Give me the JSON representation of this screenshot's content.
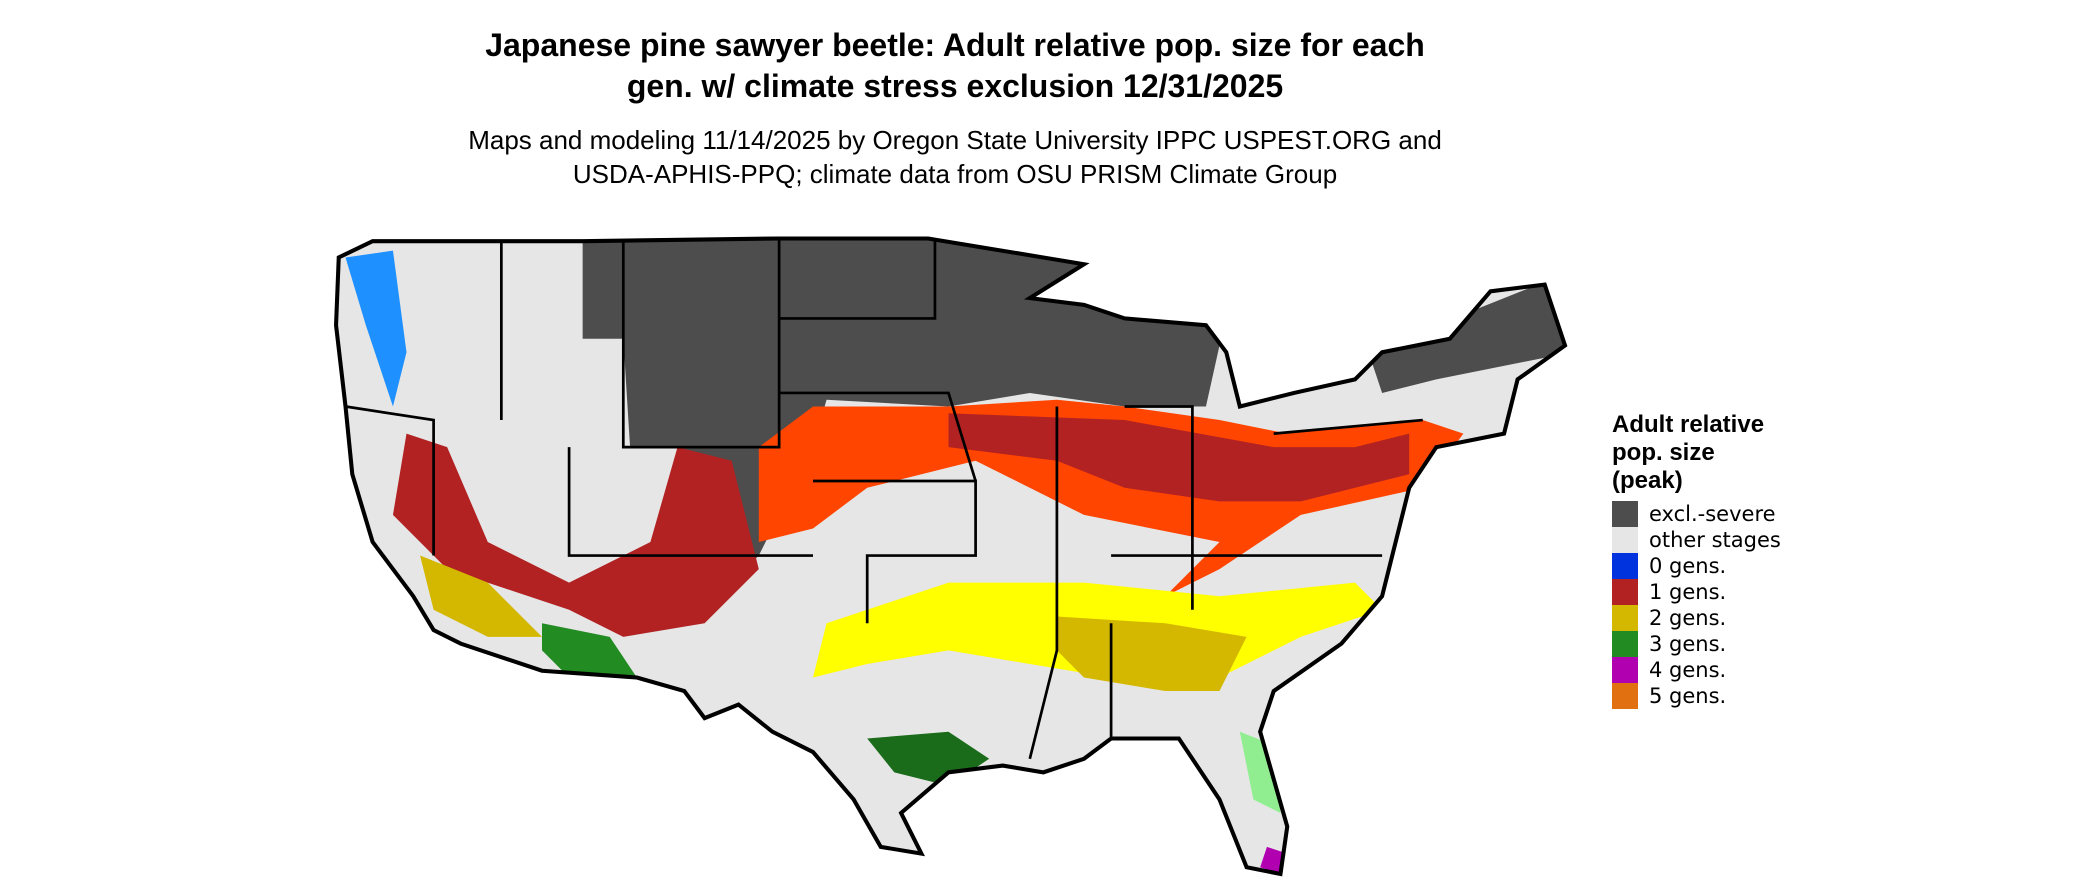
{
  "title": [
    "Japanese pine sawyer beetle: Adult relative pop. size for each",
    "gen. w/ climate stress exclusion 12/31/2025"
  ],
  "subtitle": [
    "Maps and modeling 11/14/2025 by Oregon State University IPPC USPEST.ORG and",
    "USDA-APHIS-PPQ; climate data from OSU PRISM Climate Group"
  ],
  "legend": {
    "title": [
      "Adult relative",
      "pop. size",
      "(peak)"
    ],
    "items": [
      {
        "label": "excl.-severe",
        "color": "#4d4d4d"
      },
      {
        "label": "other stages",
        "color": "#e6e6e6"
      },
      {
        "label": "0 gens.",
        "color": "#0033dd"
      },
      {
        "label": "1 gens.",
        "color": "#b22222"
      },
      {
        "label": "2 gens.",
        "color": "#d4b800"
      },
      {
        "label": "3 gens.",
        "color": "#228b22"
      },
      {
        "label": "4 gens.",
        "color": "#b000b0"
      },
      {
        "label": "5 gens.",
        "color": "#e07010"
      }
    ]
  }
}
